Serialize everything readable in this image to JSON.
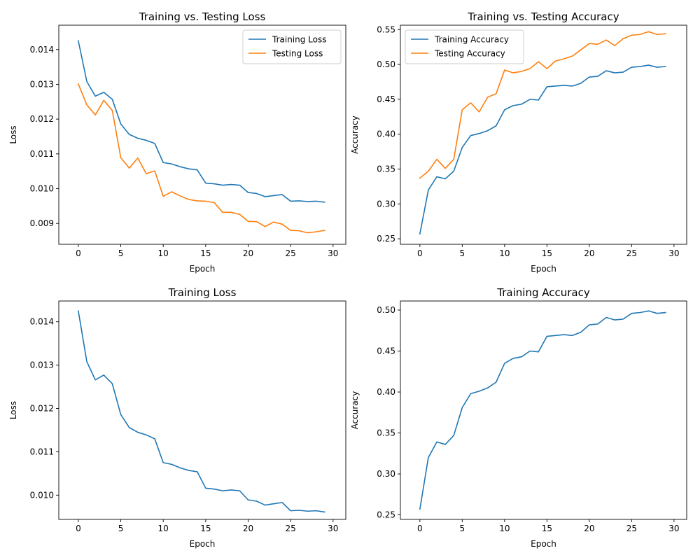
{
  "figure": {
    "colors": {
      "series_1": "#1f77b4",
      "series_2": "#ff7f0e",
      "axes": "#000000"
    }
  },
  "chart_data": [
    {
      "type": "line",
      "title": "Training vs. Testing Loss",
      "xlabel": "Epoch",
      "ylabel": "Loss",
      "xlim": [
        -2.3,
        31.5
      ],
      "ylim": [
        0.0084,
        0.0147
      ],
      "xticks": [
        0,
        5,
        10,
        15,
        20,
        25,
        30
      ],
      "xtick_labels": [
        "0",
        "5",
        "10",
        "15",
        "20",
        "25",
        "30"
      ],
      "yticks": [
        0.009,
        0.01,
        0.011,
        0.012,
        0.013,
        0.014
      ],
      "ytick_labels": [
        "0.009",
        "0.010",
        "0.011",
        "0.012",
        "0.013",
        "0.014"
      ],
      "grid": false,
      "legend": "top-right",
      "x": [
        0,
        1,
        2,
        3,
        4,
        5,
        6,
        7,
        8,
        9,
        10,
        11,
        12,
        13,
        14,
        15,
        16,
        17,
        18,
        19,
        20,
        21,
        22,
        23,
        24,
        25,
        26,
        27,
        28,
        29
      ],
      "series": [
        {
          "name": "Training Loss",
          "color": "#1f77b4",
          "values": [
            0.01425,
            0.01308,
            0.01266,
            0.01277,
            0.01257,
            0.01186,
            0.01156,
            0.01145,
            0.01139,
            0.0113,
            0.01075,
            0.01071,
            0.01063,
            0.01057,
            0.01054,
            0.01016,
            0.01014,
            0.0101,
            0.01012,
            0.0101,
            0.00989,
            0.00986,
            0.00977,
            0.0098,
            0.00983,
            0.00964,
            0.00965,
            0.00963,
            0.00964,
            0.00961
          ]
        },
        {
          "name": "Testing Loss",
          "color": "#ff7f0e",
          "values": [
            0.01301,
            0.01241,
            0.01212,
            0.01254,
            0.01225,
            0.01089,
            0.01059,
            0.01088,
            0.01043,
            0.01051,
            0.00978,
            0.00991,
            0.00979,
            0.00969,
            0.00965,
            0.00964,
            0.0096,
            0.00932,
            0.00932,
            0.00926,
            0.00906,
            0.00905,
            0.00891,
            0.00904,
            0.00898,
            0.0088,
            0.00879,
            0.00873,
            0.00876,
            0.0088
          ]
        }
      ]
    },
    {
      "type": "line",
      "title": "Training vs. Testing Accuracy",
      "xlabel": "Epoch",
      "ylabel": "Accuracy",
      "xlim": [
        -2.3,
        31.5
      ],
      "ylim": [
        0.2421,
        0.5563
      ],
      "xticks": [
        0,
        5,
        10,
        15,
        20,
        25,
        30
      ],
      "xtick_labels": [
        "0",
        "5",
        "10",
        "15",
        "20",
        "25",
        "30"
      ],
      "yticks": [
        0.25,
        0.3,
        0.35,
        0.4,
        0.45,
        0.5,
        0.55
      ],
      "ytick_labels": [
        "0.25",
        "0.30",
        "0.35",
        "0.40",
        "0.45",
        "0.50",
        "0.55"
      ],
      "grid": false,
      "legend": "top-left",
      "x": [
        0,
        1,
        2,
        3,
        4,
        5,
        6,
        7,
        8,
        9,
        10,
        11,
        12,
        13,
        14,
        15,
        16,
        17,
        18,
        19,
        20,
        21,
        22,
        23,
        24,
        25,
        26,
        27,
        28,
        29
      ],
      "series": [
        {
          "name": "Training Accuracy",
          "color": "#1f77b4",
          "values": [
            0.257,
            0.32,
            0.339,
            0.336,
            0.347,
            0.381,
            0.398,
            0.401,
            0.405,
            0.412,
            0.435,
            0.441,
            0.443,
            0.45,
            0.449,
            0.468,
            0.469,
            0.47,
            0.469,
            0.473,
            0.482,
            0.483,
            0.491,
            0.488,
            0.489,
            0.496,
            0.497,
            0.499,
            0.496,
            0.497
          ]
        },
        {
          "name": "Testing Accuracy",
          "color": "#ff7f0e",
          "values": [
            0.337,
            0.347,
            0.364,
            0.351,
            0.364,
            0.435,
            0.445,
            0.432,
            0.453,
            0.458,
            0.492,
            0.488,
            0.49,
            0.494,
            0.504,
            0.494,
            0.505,
            0.508,
            0.512,
            0.521,
            0.53,
            0.529,
            0.535,
            0.527,
            0.537,
            0.542,
            0.543,
            0.547,
            0.543,
            0.544
          ]
        }
      ]
    },
    {
      "type": "line",
      "title": "Training Loss",
      "xlabel": "Epoch",
      "ylabel": "Loss",
      "xlim": [
        -2.3,
        31.5
      ],
      "ylim": [
        0.00944,
        0.01448
      ],
      "xticks": [
        0,
        5,
        10,
        15,
        20,
        25,
        30
      ],
      "xtick_labels": [
        "0",
        "5",
        "10",
        "15",
        "20",
        "25",
        "30"
      ],
      "yticks": [
        0.01,
        0.011,
        0.012,
        0.013,
        0.014
      ],
      "ytick_labels": [
        "0.010",
        "0.011",
        "0.012",
        "0.013",
        "0.014"
      ],
      "grid": false,
      "x": [
        0,
        1,
        2,
        3,
        4,
        5,
        6,
        7,
        8,
        9,
        10,
        11,
        12,
        13,
        14,
        15,
        16,
        17,
        18,
        19,
        20,
        21,
        22,
        23,
        24,
        25,
        26,
        27,
        28,
        29
      ],
      "series": [
        {
          "color": "#1f77b4",
          "values": [
            0.01425,
            0.01308,
            0.01266,
            0.01277,
            0.01257,
            0.01186,
            0.01156,
            0.01145,
            0.01139,
            0.0113,
            0.01075,
            0.01071,
            0.01063,
            0.01057,
            0.01054,
            0.01016,
            0.01014,
            0.0101,
            0.01012,
            0.0101,
            0.00989,
            0.00986,
            0.00977,
            0.0098,
            0.00983,
            0.00964,
            0.00965,
            0.00963,
            0.00964,
            0.00961
          ]
        }
      ]
    },
    {
      "type": "line",
      "title": "Training Accuracy",
      "xlabel": "Epoch",
      "ylabel": "Accuracy",
      "xlim": [
        -2.3,
        31.5
      ],
      "ylim": [
        0.2445,
        0.5111
      ],
      "xticks": [
        0,
        5,
        10,
        15,
        20,
        25,
        30
      ],
      "xtick_labels": [
        "0",
        "5",
        "10",
        "15",
        "20",
        "25",
        "30"
      ],
      "yticks": [
        0.25,
        0.3,
        0.35,
        0.4,
        0.45,
        0.5
      ],
      "ytick_labels": [
        "0.25",
        "0.30",
        "0.35",
        "0.40",
        "0.45",
        "0.50"
      ],
      "grid": false,
      "x": [
        0,
        1,
        2,
        3,
        4,
        5,
        6,
        7,
        8,
        9,
        10,
        11,
        12,
        13,
        14,
        15,
        16,
        17,
        18,
        19,
        20,
        21,
        22,
        23,
        24,
        25,
        26,
        27,
        28,
        29
      ],
      "series": [
        {
          "color": "#1f77b4",
          "values": [
            0.257,
            0.32,
            0.339,
            0.336,
            0.347,
            0.381,
            0.398,
            0.401,
            0.405,
            0.412,
            0.435,
            0.441,
            0.443,
            0.45,
            0.449,
            0.468,
            0.469,
            0.47,
            0.469,
            0.473,
            0.482,
            0.483,
            0.491,
            0.488,
            0.489,
            0.496,
            0.497,
            0.499,
            0.496,
            0.497
          ]
        }
      ]
    }
  ]
}
